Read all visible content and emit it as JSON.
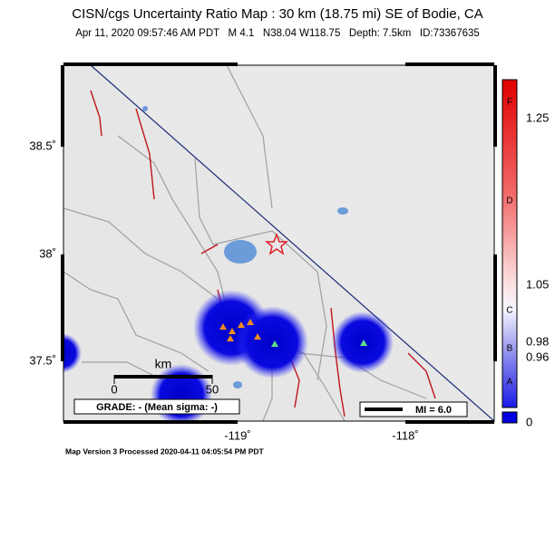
{
  "header": {
    "title": "CISN/cgs Uncertainty Ratio Map : 30 km (18.75 mi) SE of Bodie, CA",
    "subtitle": "Apr 11, 2020 09:57:46 AM PDT   M 4.1   N38.04 W118.75   Depth: 7.5km   ID:73367635"
  },
  "map": {
    "lat_labels": [
      "38.5˚",
      "38˚",
      "37.5˚"
    ],
    "lon_labels": [
      "-119˚",
      "-118˚"
    ],
    "scale_bar": {
      "unit": "km",
      "start": "0",
      "end": "50"
    },
    "grade": "GRADE: - (Mean sigma: -)",
    "mi": "MI = 6.0"
  },
  "colorbar": {
    "letters": [
      "F",
      "D",
      "C",
      "B",
      "A"
    ],
    "values": [
      "1.25",
      "1.05",
      "0.98",
      "0.96",
      "0"
    ]
  },
  "footer": "Map Version 3 Processed 2020-04-11 04:05:54 PM PDT"
}
